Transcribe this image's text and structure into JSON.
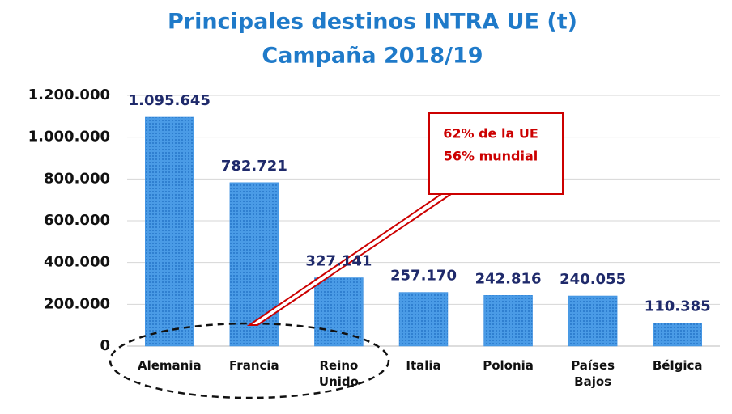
{
  "chart_data": {
    "type": "bar",
    "title": "Principales destinos INTRA UE (t)",
    "subtitle": "Campaña 2018/19",
    "categories": [
      "Alemania",
      "Francia",
      "Reino Unido",
      "Italia",
      "Polonia",
      "Países Bajos",
      "Bélgica"
    ],
    "values": [
      1095645,
      782721,
      327141,
      257170,
      242816,
      240055,
      110385
    ],
    "value_labels": [
      "1.095.645",
      "782.721",
      "327.141",
      "257.170",
      "242.816",
      "240.055",
      "110.385"
    ],
    "color": "#3a8ee0",
    "ylim": [
      0,
      1200000
    ],
    "yticks": [
      0,
      {
        "value": 200000,
        "label": "200.000"
      },
      {
        "value": 400000,
        "label": "400.000"
      },
      {
        "value": 600000,
        "label": "600.000"
      },
      {
        "value": 800000,
        "label": "800.000"
      },
      {
        "value": 1000000,
        "label": "1.000.000"
      },
      {
        "value": 1200000,
        "label": "1.200.000"
      }
    ],
    "grid": true,
    "annotation": [
      "62% de la UE",
      "56% mundial"
    ]
  }
}
